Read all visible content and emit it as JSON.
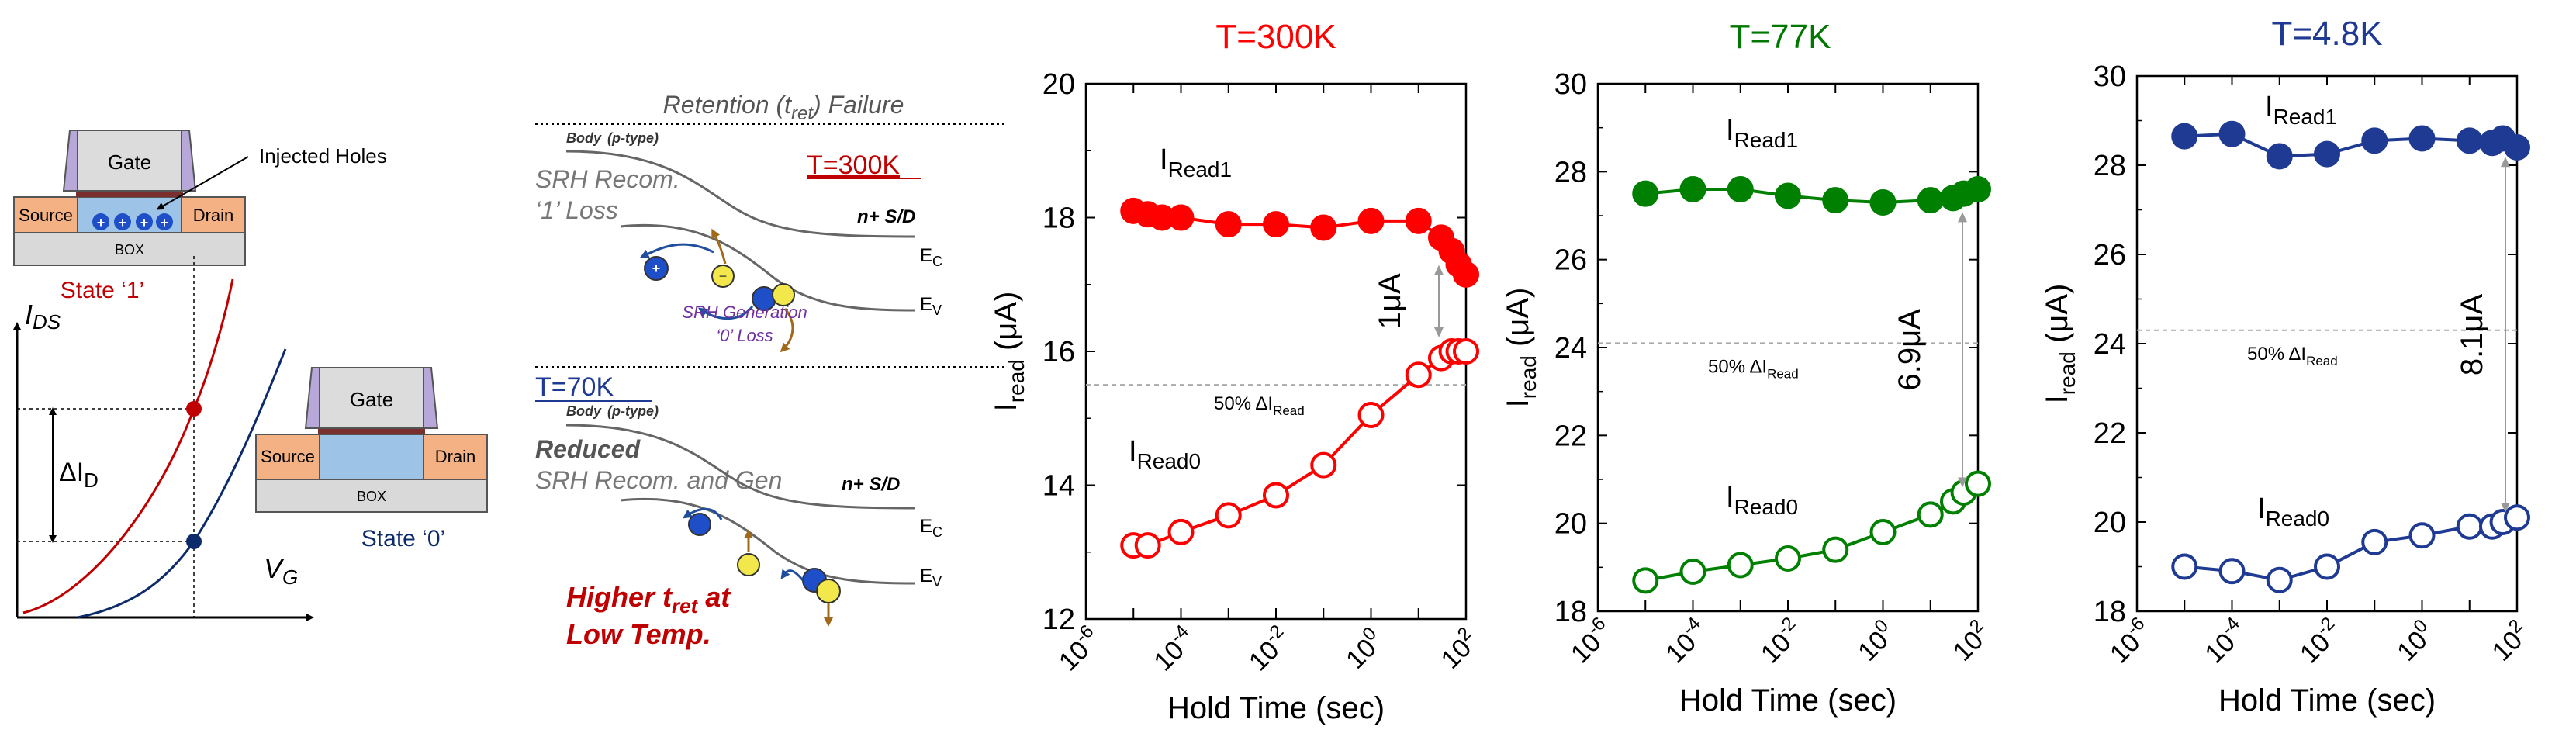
{
  "device": {
    "gate": "Gate",
    "source": "Source",
    "drain": "Drain",
    "box": "BOX",
    "holes_label": "Injected Holes",
    "state1": "State ‘1’",
    "state0": "State ‘0’",
    "ids_label": "I",
    "ids_sub": "DS",
    "vg_label": "V",
    "vg_sub": "G",
    "delta_label": "ΔI",
    "delta_sub": "D",
    "colors": {
      "state1": "#c00000",
      "state0": "#0d2b6b",
      "gate": "#dcdcdc",
      "spacer": "#b8a7d9",
      "sd": "#f4b183",
      "channel": "#9dc3e6",
      "box": "#d9d9d9"
    }
  },
  "mechanism": {
    "title_pre": "Retention (t",
    "title_sub": "ret",
    "title_post": ") Failure",
    "body_label": "Body",
    "body_type": "(p-type)",
    "temp_hot": "T=300K",
    "temp_cold": "T=70K",
    "srh_recom_1": "SRH Recom.",
    "one_loss": "‘1’ Loss",
    "srh_gen": "SRH Generation",
    "zero_loss": "‘0’ Loss",
    "nsd": "n+ S/D",
    "ec": "E",
    "ec_sub": "C",
    "ev": "E",
    "ev_sub": "V",
    "reduced": "Reduced",
    "reduced_line": "SRH Recom. and Gen",
    "higher_pre": "Higher t",
    "higher_sub": "ret",
    "higher_post": " at",
    "low_temp": "Low Temp."
  },
  "chart_data": [
    {
      "type": "line",
      "title": "T=300K",
      "title_color": "#ff0000",
      "color": "#ff0000",
      "xlabel": "Hold Time (sec)",
      "ylabel": "I",
      "ylabel_sub": "read",
      "ylabel_unit": " (μA)",
      "xscale": "log",
      "xlim": [
        1e-06,
        100
      ],
      "ylim": [
        12,
        20
      ],
      "yticks": [
        12,
        14,
        16,
        18,
        20
      ],
      "xticks": [
        {
          "value": 1e-06,
          "base": "10",
          "exp": "-6"
        },
        {
          "value": 0.0001,
          "base": "10",
          "exp": "-4"
        },
        {
          "value": 0.01,
          "base": "10",
          "exp": "-2"
        },
        {
          "value": 1,
          "base": "10",
          "exp": "0"
        },
        {
          "value": 100,
          "base": "10",
          "exp": "2"
        }
      ],
      "series": [
        {
          "name": "IRead1",
          "name_main": "I",
          "name_sub": "Read1",
          "filled": true,
          "x": [
            1e-05,
            2e-05,
            4e-05,
            0.0001,
            0.001,
            0.01,
            0.1,
            1,
            10,
            30,
            50,
            70,
            100
          ],
          "y": [
            18.1,
            18.05,
            18.0,
            18.0,
            17.9,
            17.9,
            17.85,
            17.95,
            17.95,
            17.7,
            17.5,
            17.3,
            17.15
          ]
        },
        {
          "name": "IRead0",
          "name_main": "I",
          "name_sub": "Read0",
          "filled": false,
          "x": [
            1e-05,
            2e-05,
            0.0001,
            0.001,
            0.01,
            0.1,
            1,
            10,
            30,
            50,
            70,
            100
          ],
          "y": [
            13.1,
            13.1,
            13.3,
            13.55,
            13.85,
            14.3,
            15.05,
            15.65,
            15.9,
            16.0,
            16.0,
            16.0
          ]
        }
      ],
      "reference_line": 15.5,
      "reference_label": "50% ΔI",
      "reference_sub": "Read",
      "gap_label": "1μA"
    },
    {
      "type": "line",
      "title": "T=77K",
      "title_color": "#007700",
      "color": "#008000",
      "xlabel": "Hold Time (sec)",
      "ylabel": "I",
      "ylabel_sub": "read",
      "ylabel_unit": " (μA)",
      "xscale": "log",
      "xlim": [
        1e-06,
        100
      ],
      "ylim": [
        18,
        30
      ],
      "yticks": [
        18,
        20,
        22,
        24,
        26,
        28,
        30
      ],
      "xticks": [
        {
          "value": 1e-06,
          "base": "10",
          "exp": "-6"
        },
        {
          "value": 0.0001,
          "base": "10",
          "exp": "-4"
        },
        {
          "value": 0.01,
          "base": "10",
          "exp": "-2"
        },
        {
          "value": 1,
          "base": "10",
          "exp": "0"
        },
        {
          "value": 100,
          "base": "10",
          "exp": "2"
        }
      ],
      "series": [
        {
          "name": "IRead1",
          "name_main": "I",
          "name_sub": "Read1",
          "filled": true,
          "x": [
            1e-05,
            0.0001,
            0.001,
            0.01,
            0.1,
            1,
            10,
            30,
            50,
            100
          ],
          "y": [
            27.5,
            27.6,
            27.6,
            27.45,
            27.35,
            27.3,
            27.35,
            27.4,
            27.5,
            27.6
          ]
        },
        {
          "name": "IRead0",
          "name_main": "I",
          "name_sub": "Read0",
          "filled": false,
          "x": [
            1e-05,
            0.0001,
            0.001,
            0.01,
            0.1,
            1,
            10,
            30,
            50,
            100
          ],
          "y": [
            18.7,
            18.9,
            19.05,
            19.2,
            19.4,
            19.8,
            20.2,
            20.5,
            20.7,
            20.9
          ]
        }
      ],
      "reference_line": 24.1,
      "reference_label": "50% ΔI",
      "reference_sub": "Read",
      "gap_label": "6.9μA"
    },
    {
      "type": "line",
      "title": "T=4.8K",
      "title_color": "#1f3a93",
      "color": "#1f3a93",
      "xlabel": "Hold Time (sec)",
      "ylabel": "I",
      "ylabel_sub": "read",
      "ylabel_unit": " (μA)",
      "xscale": "log",
      "xlim": [
        1e-06,
        100
      ],
      "ylim": [
        18,
        30
      ],
      "yticks": [
        18,
        20,
        22,
        24,
        26,
        28,
        30
      ],
      "xticks": [
        {
          "value": 1e-06,
          "base": "10",
          "exp": "-6"
        },
        {
          "value": 0.0001,
          "base": "10",
          "exp": "-4"
        },
        {
          "value": 0.01,
          "base": "10",
          "exp": "-2"
        },
        {
          "value": 1,
          "base": "10",
          "exp": "0"
        },
        {
          "value": 100,
          "base": "10",
          "exp": "2"
        }
      ],
      "series": [
        {
          "name": "IRead1",
          "name_main": "I",
          "name_sub": "Read1",
          "filled": true,
          "x": [
            1e-05,
            0.0001,
            0.001,
            0.01,
            0.1,
            1,
            10,
            30,
            50,
            100
          ],
          "y": [
            28.65,
            28.7,
            28.2,
            28.25,
            28.55,
            28.6,
            28.55,
            28.5,
            28.6,
            28.4
          ]
        },
        {
          "name": "IRead0",
          "name_main": "I",
          "name_sub": "Read0",
          "filled": false,
          "x": [
            1e-05,
            0.0001,
            0.001,
            0.01,
            0.1,
            1,
            10,
            30,
            50,
            100
          ],
          "y": [
            19.0,
            18.9,
            18.7,
            19.0,
            19.55,
            19.7,
            19.9,
            19.9,
            20.0,
            20.1
          ]
        }
      ],
      "reference_line": 24.3,
      "reference_label": "50% ΔI",
      "reference_sub": "Read",
      "gap_label": "8.1μA"
    }
  ]
}
